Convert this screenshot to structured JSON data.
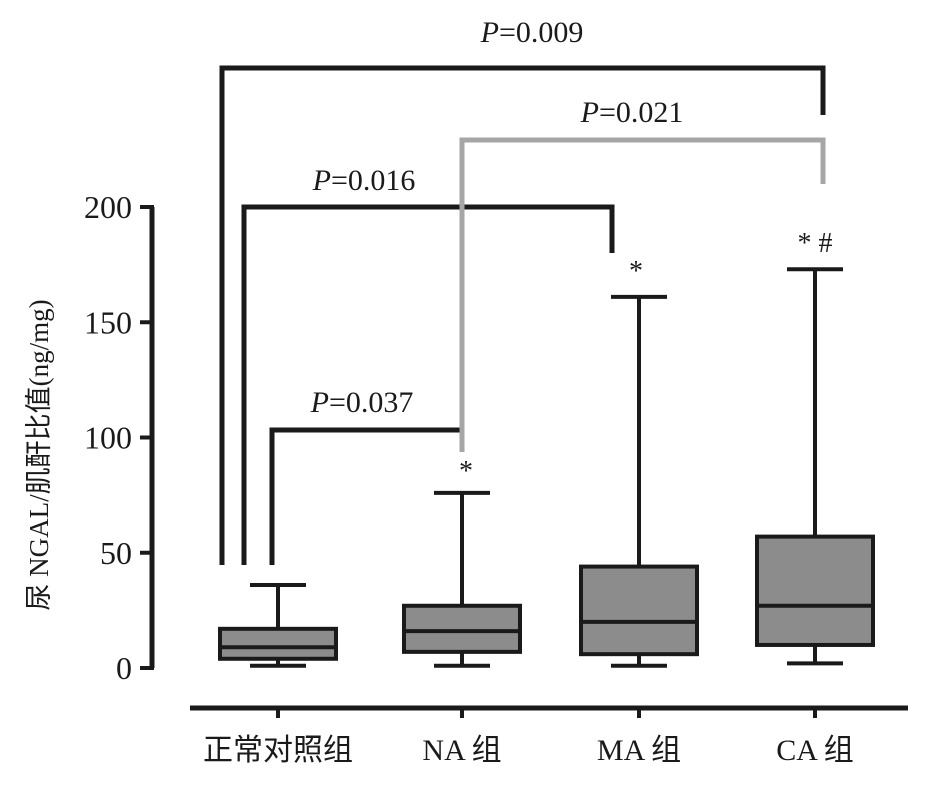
{
  "chart_data": {
    "type": "box",
    "title": "",
    "xlabel": "",
    "ylabel": "尿 NGAL/肌酐比值(ng/mg)",
    "ylim": [
      0,
      200
    ],
    "yticks": [
      0,
      50,
      100,
      150,
      200
    ],
    "categories": [
      "正常对照组",
      "NA 组",
      "MA 组",
      "CA 组"
    ],
    "boxes": [
      {
        "group": "正常对照组",
        "min": 1,
        "q1": 4,
        "median": 9,
        "q3": 17,
        "max": 36,
        "sig": ""
      },
      {
        "group": "NA 组",
        "min": 1,
        "q1": 7,
        "median": 16,
        "q3": 27,
        "max": 76,
        "sig": "*"
      },
      {
        "group": "MA 组",
        "min": 1,
        "q1": 6,
        "median": 20,
        "q3": 44,
        "max": 161,
        "sig": "*"
      },
      {
        "group": "CA 组",
        "min": 2,
        "q1": 10,
        "median": 27,
        "q3": 57,
        "max": 173,
        "sig": "* #"
      }
    ],
    "comparisons": [
      {
        "from": "正常对照组",
        "to": "NA 组",
        "label": "P=0.037",
        "color": "#1a1a1a"
      },
      {
        "from": "正常对照组",
        "to": "MA 组",
        "label": "P=0.016",
        "color": "#1a1a1a"
      },
      {
        "from": "NA 组",
        "to": "CA 组",
        "label": "P=0.021",
        "color": "#a6a6a6"
      },
      {
        "from": "正常对照组",
        "to": "CA 组",
        "label": "P=0.009",
        "color": "#1a1a1a"
      }
    ],
    "colors": {
      "box_fill": "#8c8c8c",
      "line": "#1a1a1a",
      "gray_bracket": "#a6a6a6"
    }
  }
}
